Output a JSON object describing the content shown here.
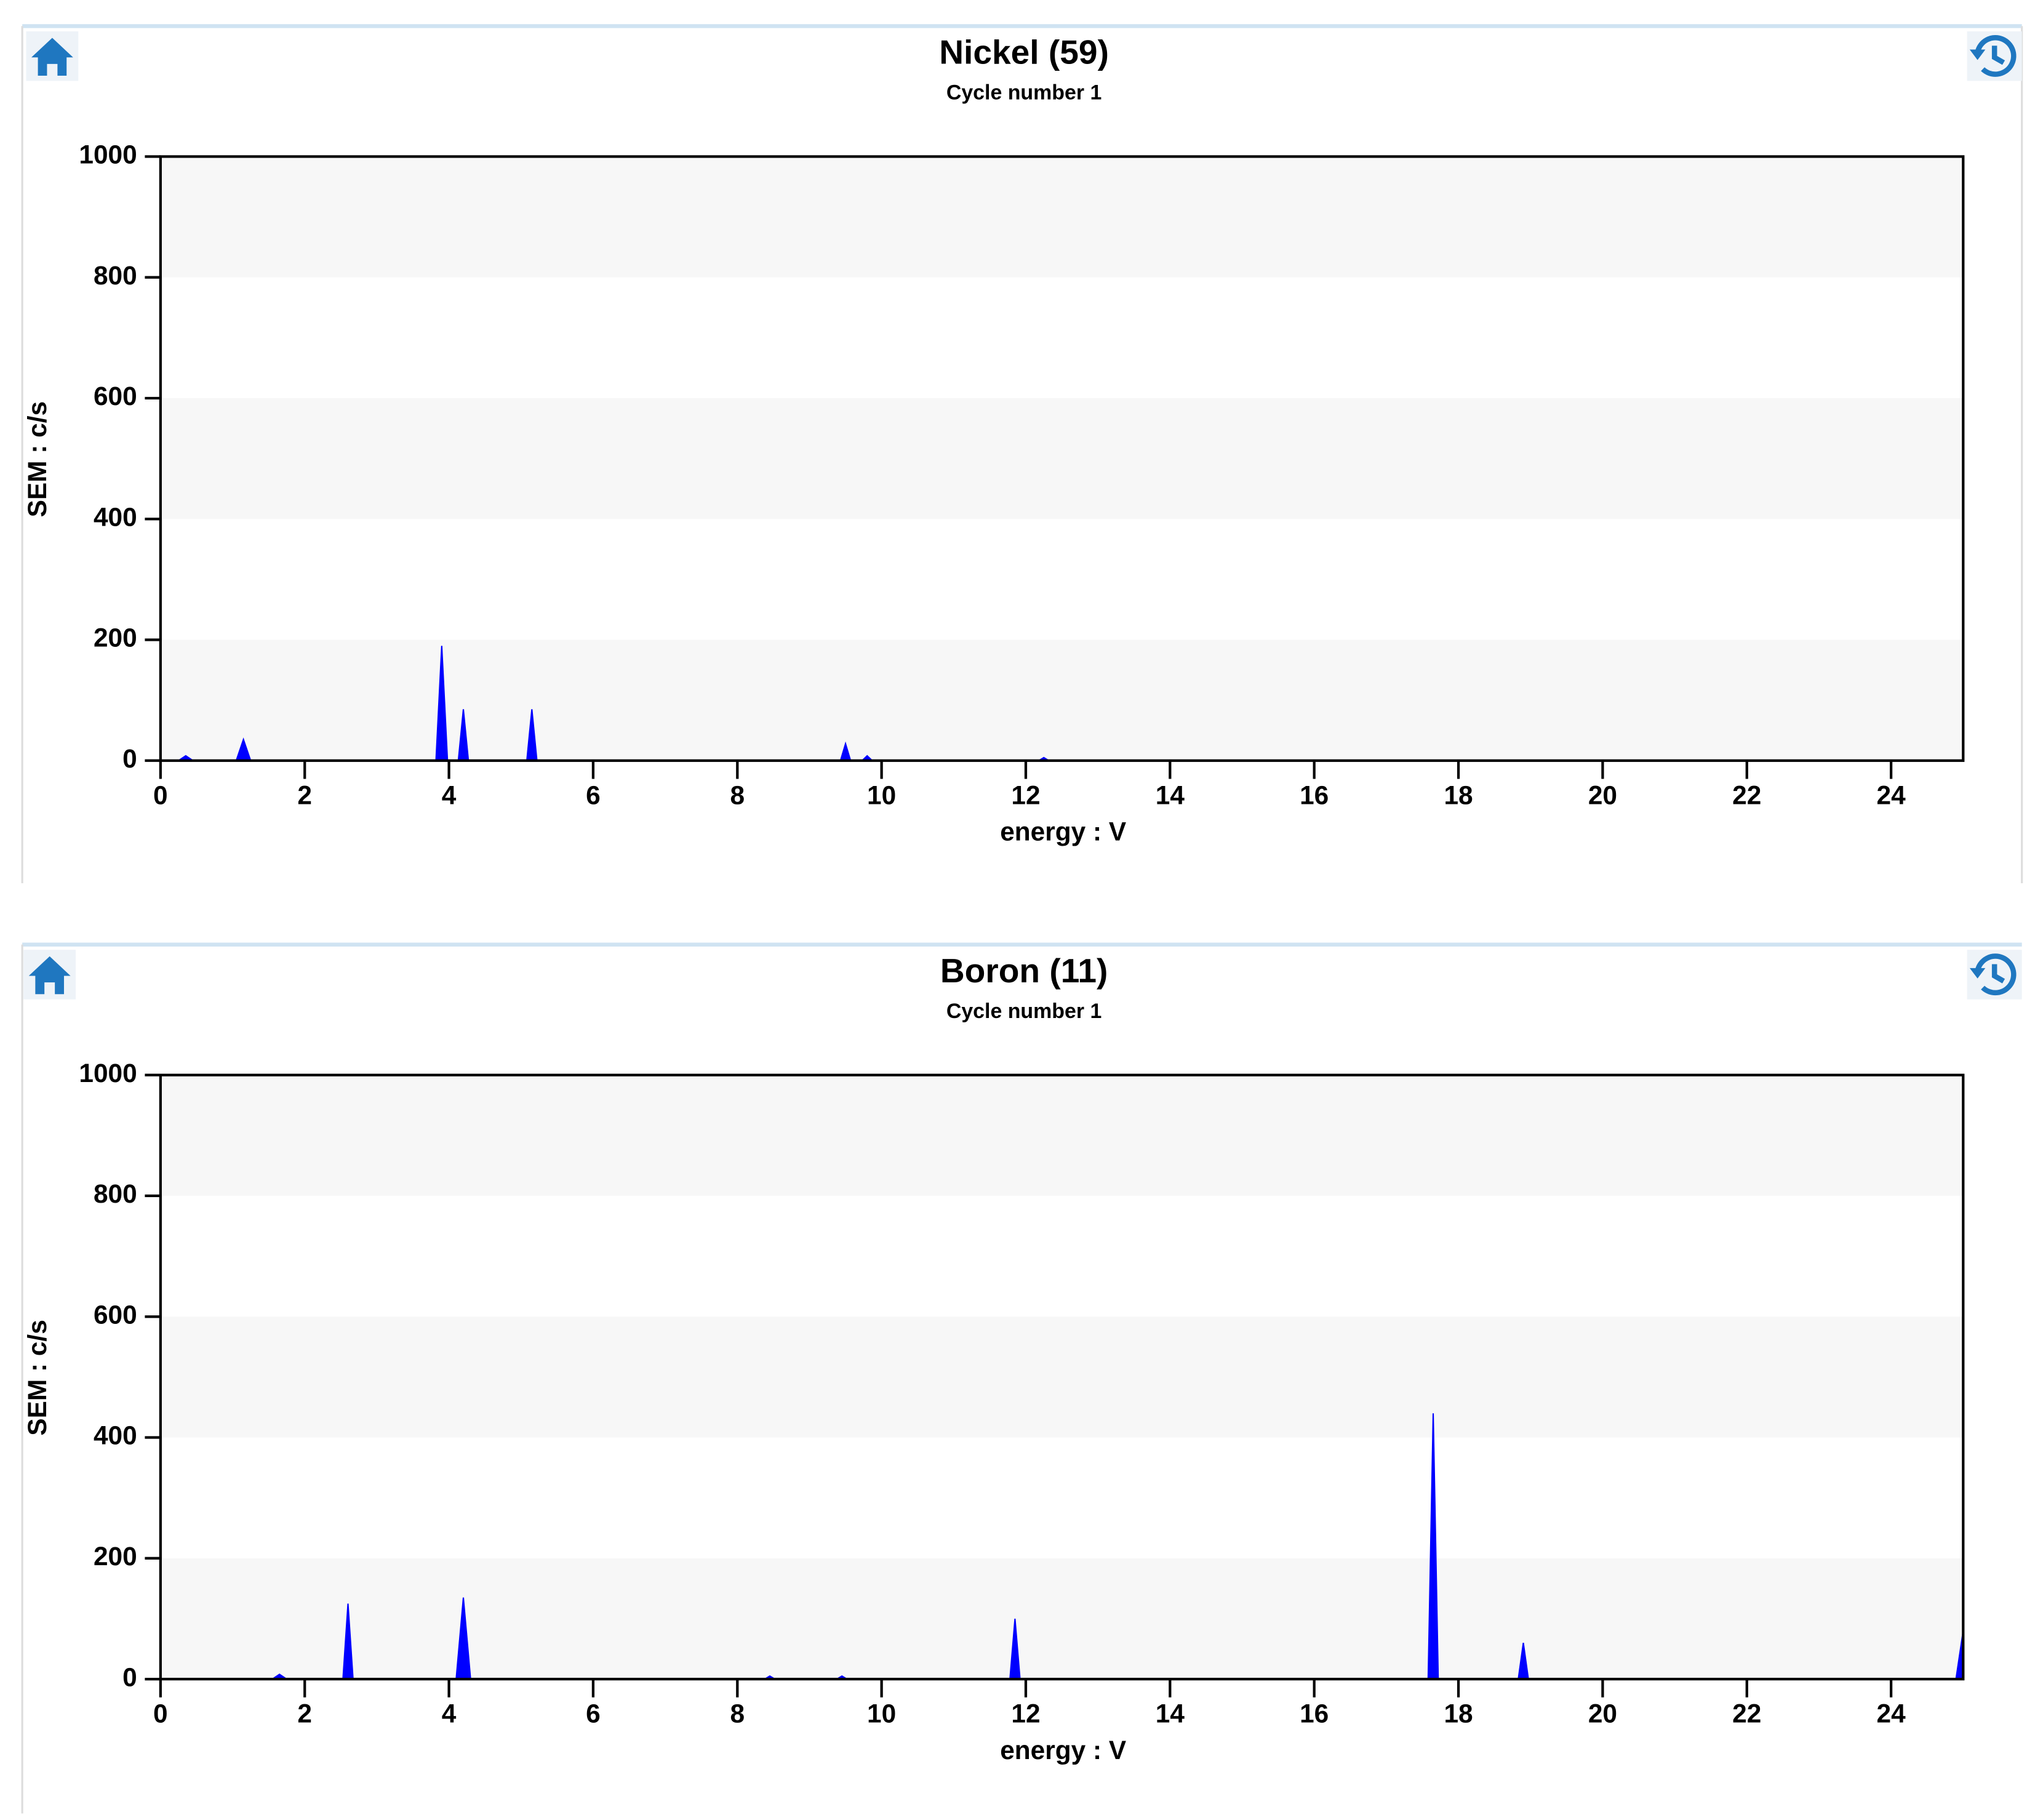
{
  "chart_data": [
    {
      "type": "area",
      "title": "Nickel (59)",
      "subtitle": "Cycle number 1",
      "xlabel": "energy : V",
      "ylabel": "SEM : c/s",
      "x": [
        0,
        0.25,
        0.35,
        0.45,
        1.05,
        1.15,
        1.25,
        3.82,
        3.9,
        3.98,
        4.13,
        4.2,
        4.27,
        5.08,
        5.15,
        5.22,
        9.43,
        9.5,
        9.57,
        9.73,
        9.8,
        9.87,
        12.18,
        12.25,
        12.32,
        25
      ],
      "values": [
        0,
        0,
        8,
        0,
        0,
        35,
        0,
        0,
        190,
        0,
        0,
        85,
        0,
        0,
        85,
        0,
        0,
        28,
        0,
        0,
        8,
        0,
        0,
        5,
        0,
        0
      ],
      "color": "#0000ff",
      "xlim": [
        0,
        25
      ],
      "ylim": [
        0,
        1000
      ],
      "xticks": [
        0,
        2,
        4,
        6,
        8,
        10,
        12,
        14,
        16,
        18,
        20,
        22,
        24
      ],
      "yticks": [
        0,
        200,
        400,
        600,
        800,
        1000
      ],
      "grid": "bands"
    },
    {
      "type": "area",
      "title": "Boron (11)",
      "subtitle": "Cycle number 1",
      "xlabel": "energy : V",
      "ylabel": "SEM : c/s",
      "x": [
        0,
        1.55,
        1.65,
        1.75,
        2.53,
        2.6,
        2.67,
        4.1,
        4.2,
        4.3,
        8.38,
        8.45,
        8.52,
        9.38,
        9.45,
        9.52,
        11.78,
        11.85,
        11.92,
        17.58,
        17.65,
        17.72,
        18.83,
        18.9,
        18.97,
        24.9,
        25
      ],
      "values": [
        0,
        0,
        8,
        0,
        0,
        125,
        0,
        0,
        135,
        0,
        0,
        5,
        0,
        0,
        5,
        0,
        0,
        100,
        0,
        0,
        440,
        0,
        0,
        60,
        0,
        0,
        80
      ],
      "color": "#0000ff",
      "xlim": [
        0,
        25
      ],
      "ylim": [
        0,
        1000
      ],
      "xticks": [
        0,
        2,
        4,
        6,
        8,
        10,
        12,
        14,
        16,
        18,
        20,
        22,
        24
      ],
      "yticks": [
        0,
        200,
        400,
        600,
        800,
        1000
      ],
      "grid": "bands"
    }
  ]
}
